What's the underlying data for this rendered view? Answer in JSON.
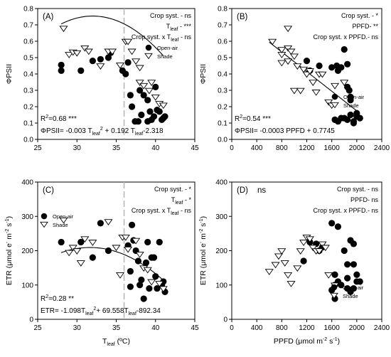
{
  "chart_data": [
    {
      "type": "scatter",
      "panel_label": "(A)",
      "ylabel": "ΦPSII",
      "xlim": [
        25,
        45
      ],
      "ylim": [
        0,
        0.8
      ],
      "xticks": [
        25,
        30,
        35,
        40,
        45
      ],
      "yticks": [
        0.0,
        0.1,
        0.2,
        0.3,
        0.4,
        0.5,
        0.6,
        0.7,
        0.8
      ],
      "ytick_format": 1,
      "vline": 36,
      "annotations": [
        {
          "text": "Crop syst. - ns"
        },
        {
          "text": "Tleaf - ***",
          "html": "T<tspan font-size='7' dy='3'>leaf</tspan><tspan dy='-3'> - ***</tspan>"
        },
        {
          "text": "Crop syst. x Tleaf - ns",
          "html": "Crop syst. x T<tspan font-size='7' dy='3'>leaf</tspan><tspan dy='-3'> - ns</tspan>"
        }
      ],
      "r2_label": "R2=0.68 ***",
      "r2_html": "R<tspan font-size='7' dy='-4'>2</tspan><tspan dy='4'>=0.68 ***</tspan>",
      "equation": "ΦPSII= -0.003 Tleaf2 + 0.192 Tleaf-2.318",
      "equation_html": "ΦPSII= -0.003 T<tspan font-size='7' dy='3'>leaf</tspan><tspan font-size='7' dy='-7'>2</tspan><tspan dy='4'> + 0.192 T</tspan><tspan font-size='7' dy='3'>leaf</tspan><tspan dy='-3'>-2.318</tspan>",
      "fit": {
        "kind": "quadratic",
        "a": -0.003,
        "b": 0.192,
        "c": -2.318,
        "x_from": 28,
        "x_to": 41
      },
      "legend": {
        "position": "top-right",
        "items": [
          "Open-air",
          "Shade"
        ]
      },
      "series": [
        {
          "name": "Open-air",
          "marker": "circle",
          "points": [
            [
              28,
              0.455
            ],
            [
              28,
              0.42
            ],
            [
              30.5,
              0.42
            ],
            [
              32,
              0.48
            ],
            [
              33,
              0.49
            ],
            [
              34,
              0.5
            ],
            [
              34.3,
              0.53
            ],
            [
              35.8,
              0.42
            ],
            [
              36.2,
              0.4
            ],
            [
              36.5,
              0.47
            ],
            [
              36.8,
              0.27
            ],
            [
              37,
              0.2
            ],
            [
              37.4,
              0.11
            ],
            [
              37.8,
              0.11
            ],
            [
              38,
              0.3
            ],
            [
              38.2,
              0.15
            ],
            [
              38.5,
              0.27
            ],
            [
              39,
              0.24
            ],
            [
              39,
              0.11
            ],
            [
              39.3,
              0.17
            ],
            [
              39.5,
              0.12
            ],
            [
              39.8,
              0.14
            ],
            [
              40,
              0.32
            ],
            [
              40.2,
              0.18
            ],
            [
              40.5,
              0.17
            ],
            [
              40.8,
              0.12
            ],
            [
              41,
              0.13
            ],
            [
              41.2,
              0.14
            ]
          ]
        },
        {
          "name": "Shade",
          "marker": "triangle",
          "points": [
            [
              28.3,
              0.68
            ],
            [
              29,
              0.52
            ],
            [
              29.5,
              0.535
            ],
            [
              30,
              0.53
            ],
            [
              31,
              0.56
            ],
            [
              31.5,
              0.54
            ],
            [
              33,
              0.45
            ],
            [
              34,
              0.54
            ],
            [
              34.5,
              0.54
            ],
            [
              35.5,
              0.455
            ],
            [
              36.2,
              0.6
            ],
            [
              36.5,
              0.6
            ],
            [
              37,
              0.54
            ],
            [
              37.5,
              0.48
            ],
            [
              38,
              0.44
            ],
            [
              38,
              0.35
            ],
            [
              38.5,
              0.33
            ],
            [
              39.2,
              0.3
            ],
            [
              39.5,
              0.35
            ],
            [
              40,
              0.26
            ],
            [
              40.5,
              0.22
            ],
            [
              41,
              0.21
            ]
          ]
        }
      ]
    },
    {
      "type": "scatter",
      "panel_label": "(B)",
      "ylabel": "ΦPSII",
      "xlim": [
        0,
        2400
      ],
      "ylim": [
        0,
        0.8
      ],
      "xticks": [
        0,
        400,
        800,
        1200,
        1600,
        2000,
        2400
      ],
      "yticks": [
        0.0,
        0.1,
        0.2,
        0.3,
        0.4,
        0.5,
        0.6,
        0.7,
        0.8
      ],
      "ytick_format": 1,
      "annotations": [
        {
          "text": "Crop syst. - *"
        },
        {
          "text": "PPFD- **"
        },
        {
          "text": "Crop syst. x PPFD.- ns"
        }
      ],
      "r2_label": "R2=0.54 ***",
      "r2_html": "R<tspan font-size='7' dy='-4'>2</tspan><tspan dy='4'>=0.54 ***</tspan>",
      "equation": "ΦPSII= -0.0003 PPFD + 0.7745",
      "equation_html": "ΦPSII= -0.0003 PPFD + 0.7745",
      "fit": {
        "kind": "linear",
        "m": -0.0003,
        "c": 0.7745,
        "x_from": 600,
        "x_to": 2050
      },
      "legend": {
        "position": "right",
        "items": [
          "Open-air",
          "Shade"
        ]
      },
      "series": [
        {
          "name": "Open-air",
          "marker": "circle",
          "points": [
            [
              1200,
              0.48
            ],
            [
              1250,
              0.42
            ],
            [
              1400,
              0.45
            ],
            [
              1600,
              0.44
            ],
            [
              1680,
              0.45
            ],
            [
              1700,
              0.42
            ],
            [
              1750,
              0.44
            ],
            [
              1800,
              0.55
            ],
            [
              1850,
              0.46
            ],
            [
              1850,
              0.32
            ],
            [
              1880,
              0.3
            ],
            [
              1900,
              0.24
            ],
            [
              1650,
              0.12
            ],
            [
              1700,
              0.11
            ],
            [
              1750,
              0.13
            ],
            [
              1800,
              0.13
            ],
            [
              1850,
              0.12
            ],
            [
              1900,
              0.15
            ],
            [
              1950,
              0.11
            ],
            [
              2000,
              0.14
            ],
            [
              2050,
              0.13
            ],
            [
              1900,
              0.26
            ],
            [
              1950,
              0.1
            ],
            [
              2000,
              0.16
            ]
          ]
        },
        {
          "name": "Shade",
          "marker": "triangle",
          "points": [
            [
              650,
              0.6
            ],
            [
              800,
              0.52
            ],
            [
              800,
              0.55
            ],
            [
              900,
              0.56
            ],
            [
              950,
              0.54
            ],
            [
              1000,
              0.51
            ],
            [
              800,
              0.47
            ],
            [
              900,
              0.48
            ],
            [
              1000,
              0.3
            ],
            [
              1050,
              0.45
            ],
            [
              1100,
              0.3
            ],
            [
              1150,
              0.43
            ],
            [
              1200,
              0.4
            ],
            [
              1250,
              0.42
            ],
            [
              1300,
              0.35
            ],
            [
              1350,
              0.29
            ],
            [
              1400,
              0.4
            ],
            [
              1450,
              0.4
            ],
            [
              1550,
              0.23
            ],
            [
              1600,
              0.21
            ],
            [
              1650,
              0.33
            ],
            [
              1800,
              0.35
            ],
            [
              900,
              0.68
            ]
          ]
        }
      ]
    },
    {
      "type": "scatter",
      "panel_label": "(C)",
      "ylabel": "ETR (μmol e- m-2 s-1)",
      "ylabel_html": "ETR (μmol e<tspan font-size='7' dy='-4'>-</tspan><tspan dy='4'> m</tspan><tspan font-size='7' dy='-4'>-2</tspan><tspan dy='4'> s</tspan><tspan font-size='7' dy='-4'>-1</tspan><tspan dy='4'>)</tspan>",
      "xlabel": "Tleaf (ºC)",
      "xlabel_html": "T<tspan font-size='7' dy='3'>leaf</tspan><tspan dy='-3'> (ºC)</tspan>",
      "xlim": [
        25,
        45
      ],
      "ylim": [
        0,
        400
      ],
      "xticks": [
        25,
        30,
        35,
        40,
        45
      ],
      "yticks": [
        0,
        100,
        200,
        300,
        400
      ],
      "ytick_format": 0,
      "vline": 36,
      "annotations": [
        {
          "text": "Crop syst. - *"
        },
        {
          "text": "Tleaf - *",
          "html": "T<tspan font-size='7' dy='3'>leaf</tspan><tspan dy='-3'> - *</tspan>"
        },
        {
          "text": "Crop syst. x Tleaf - ns",
          "html": "Crop syst. x T<tspan font-size='7' dy='3'>leaf</tspan><tspan dy='-3'> - ns</tspan>"
        }
      ],
      "r2_label": "R2=0.28 **",
      "r2_html": "R<tspan font-size='7' dy='-4'>2</tspan><tspan dy='4'>=0.28 **</tspan>",
      "equation": "ETR= -1.098Tleaf2+ 69.558Tleaf-892.34",
      "equation_html": "ETR= -1.098T<tspan font-size='7' dy='3'>leaf</tspan><tspan font-size='7' dy='-7'>2</tspan><tspan dy='4'>+ 69.558T</tspan><tspan font-size='7' dy='3'>leaf</tspan><tspan dy='-3'>-892.34</tspan>",
      "fit": {
        "kind": "quadratic",
        "a": -1.098,
        "b": 69.558,
        "c": -892.34,
        "x_from": 28,
        "x_to": 41
      },
      "legend": {
        "position": "left",
        "items": [
          "Open-air",
          "Shade"
        ]
      },
      "series": [
        {
          "name": "Open-air",
          "marker": "circle",
          "points": [
            [
              28,
              225
            ],
            [
              30.5,
              225
            ],
            [
              32,
              180
            ],
            [
              33,
              280
            ],
            [
              34,
              200
            ],
            [
              36.5,
              215
            ],
            [
              36.8,
              140
            ],
            [
              37,
              275
            ],
            [
              37.2,
              230
            ],
            [
              37.5,
              200
            ],
            [
              37.8,
              170
            ],
            [
              38,
              100
            ],
            [
              38.2,
              115
            ],
            [
              38.5,
              60
            ],
            [
              38.8,
              165
            ],
            [
              39,
              225
            ],
            [
              39.2,
              90
            ],
            [
              39.5,
              180
            ],
            [
              39.8,
              180
            ],
            [
              40,
              125
            ],
            [
              40.2,
              90
            ],
            [
              40.5,
              225
            ],
            [
              40.8,
              100
            ],
            [
              41,
              110
            ],
            [
              41.2,
              80
            ],
            [
              36.8,
              95
            ]
          ]
        },
        {
          "name": "Shade",
          "marker": "triangle",
          "points": [
            [
              28.3,
              290
            ],
            [
              29,
              195
            ],
            [
              29.5,
              210
            ],
            [
              30,
              200
            ],
            [
              30.5,
              165
            ],
            [
              31,
              235
            ],
            [
              32,
              225
            ],
            [
              34,
              285
            ],
            [
              35,
              210
            ],
            [
              35.5,
              130
            ],
            [
              35.8,
              240
            ],
            [
              36.2,
              240
            ],
            [
              36.5,
              205
            ],
            [
              37.5,
              230
            ],
            [
              38,
              190
            ],
            [
              38.5,
              150
            ],
            [
              39,
              145
            ],
            [
              39.5,
              110
            ],
            [
              40.5,
              105
            ],
            [
              41,
              90
            ]
          ]
        }
      ]
    },
    {
      "type": "scatter",
      "panel_label": "(D)",
      "ylabel": "ETR (μmol e- m-2 s-1)",
      "ylabel_html": "ETR (μmol e<tspan font-size='7' dy='-4'>-</tspan><tspan dy='4'> m</tspan><tspan font-size='7' dy='-4'>-2</tspan><tspan dy='4'> s</tspan><tspan font-size='7' dy='-4'>-1</tspan><tspan dy='4'>)</tspan>",
      "xlabel": "PPFD (μmol m-2 s-1)",
      "xlabel_html": "PPFD (μmol m<tspan font-size='7' dy='-4'>-2</tspan><tspan dy='4'> s</tspan><tspan font-size='7' dy='-4'>-1</tspan><tspan dy='4'>)</tspan>",
      "xlim": [
        0,
        2400
      ],
      "ylim": [
        0,
        400
      ],
      "xticks": [
        0,
        400,
        800,
        1200,
        1600,
        2000,
        2400
      ],
      "yticks": [
        0,
        100,
        200,
        300,
        400
      ],
      "ytick_format": 0,
      "corner_note": "ns",
      "annotations": [
        {
          "text": "Crop syst. - ns"
        },
        {
          "text": "PPFD- ns"
        },
        {
          "text": "Crop syst. x PPFD.- ns"
        }
      ],
      "legend": {
        "position": "bottom-right",
        "items": [
          "Open-air",
          "Shade"
        ]
      },
      "series": [
        {
          "name": "Open-air",
          "marker": "circle",
          "points": [
            [
              1150,
              170
            ],
            [
              1250,
              225
            ],
            [
              1350,
              220
            ],
            [
              1400,
              200
            ],
            [
              1450,
              210
            ],
            [
              1600,
              280
            ],
            [
              1650,
              130
            ],
            [
              1700,
              270
            ],
            [
              1650,
              100
            ],
            [
              1600,
              85
            ],
            [
              1650,
              60
            ],
            [
              1700,
              110
            ],
            [
              1750,
              100
            ],
            [
              1800,
              200
            ],
            [
              1850,
              120
            ],
            [
              1900,
              230
            ],
            [
              1950,
              220
            ],
            [
              1950,
              160
            ],
            [
              2000,
              130
            ],
            [
              1850,
              90
            ],
            [
              1900,
              80
            ],
            [
              2000,
              110
            ],
            [
              2050,
              110
            ],
            [
              1950,
              90
            ],
            [
              1850,
              160
            ]
          ]
        },
        {
          "name": "Shade",
          "marker": "triangle",
          "points": [
            [
              600,
              140
            ],
            [
              700,
              160
            ],
            [
              750,
              185
            ],
            [
              800,
              200
            ],
            [
              850,
              165
            ],
            [
              900,
              130
            ],
            [
              950,
              105
            ],
            [
              1050,
              150
            ],
            [
              1100,
              200
            ],
            [
              1150,
              225
            ],
            [
              1200,
              240
            ],
            [
              1250,
              235
            ],
            [
              1300,
              210
            ],
            [
              1350,
              200
            ],
            [
              1400,
              200
            ],
            [
              1450,
              220
            ],
            [
              1500,
              210
            ],
            [
              1550,
              130
            ],
            [
              1650,
              100
            ]
          ]
        }
      ]
    }
  ]
}
